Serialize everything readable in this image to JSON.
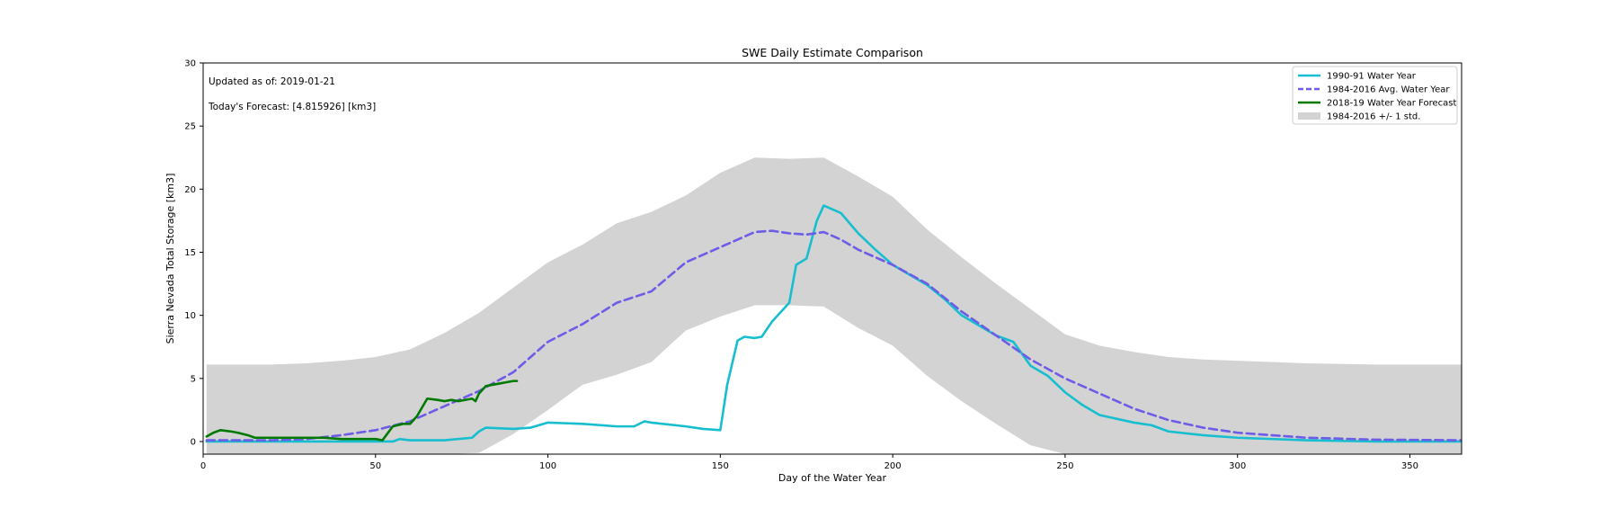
{
  "chart_data": {
    "type": "line",
    "title": "SWE Daily Estimate Comparison",
    "xlabel": "Day of the Water Year",
    "ylabel": "Sierra Nevada Total Storage [km3]",
    "xlim": [
      0,
      365
    ],
    "ylim": [
      -1,
      30
    ],
    "xticks": [
      0,
      50,
      100,
      150,
      200,
      250,
      300,
      350
    ],
    "yticks": [
      0,
      5,
      10,
      15,
      20,
      25,
      30
    ],
    "grid": false,
    "legend_position": "top-right",
    "annotations": [
      "Updated as of: 2019-01-21",
      "Today's Forecast: [4.815926] [km3]"
    ],
    "band": {
      "name": "1984-2016 +/- 1 std.",
      "color": "#d3d3d3",
      "x": [
        1,
        10,
        20,
        30,
        40,
        50,
        60,
        70,
        80,
        90,
        100,
        110,
        120,
        130,
        140,
        150,
        160,
        170,
        180,
        190,
        200,
        210,
        220,
        230,
        240,
        250,
        260,
        270,
        280,
        290,
        300,
        320,
        340,
        365
      ],
      "upper": [
        6.1,
        6.1,
        6.1,
        6.2,
        6.4,
        6.7,
        7.3,
        8.6,
        10.2,
        12.2,
        14.2,
        15.6,
        17.3,
        18.2,
        19.5,
        21.3,
        22.5,
        22.4,
        22.5,
        21.0,
        19.4,
        16.8,
        14.6,
        12.5,
        10.5,
        8.5,
        7.6,
        7.1,
        6.7,
        6.5,
        6.4,
        6.2,
        6.1,
        6.1
      ],
      "lower": [
        -1,
        -1,
        -1,
        -1,
        -1,
        -1,
        -1,
        -1,
        -0.9,
        0.6,
        2.5,
        4.5,
        5.3,
        6.3,
        8.8,
        9.9,
        10.8,
        10.8,
        10.7,
        9.0,
        7.6,
        5.2,
        3.2,
        1.4,
        -0.3,
        -1,
        -1,
        -1,
        -1,
        -1,
        -1,
        -1,
        -1,
        -1
      ]
    },
    "series": [
      {
        "name": "1990-91 Water Year",
        "color": "#17becf",
        "style": "solid",
        "x": [
          1,
          10,
          20,
          30,
          40,
          50,
          55,
          57,
          60,
          70,
          78,
          80,
          82,
          90,
          95,
          100,
          110,
          120,
          125,
          128,
          130,
          140,
          145,
          150,
          152,
          155,
          157,
          160,
          162,
          165,
          170,
          172,
          175,
          178,
          180,
          185,
          190,
          195,
          200,
          205,
          210,
          215,
          220,
          225,
          230,
          235,
          240,
          245,
          250,
          255,
          260,
          270,
          275,
          280,
          290,
          300,
          320,
          340,
          365
        ],
        "y": [
          0,
          0,
          0,
          0,
          0,
          0,
          0,
          0.2,
          0.1,
          0.1,
          0.3,
          0.8,
          1.1,
          1.0,
          1.1,
          1.5,
          1.4,
          1.2,
          1.2,
          1.6,
          1.5,
          1.2,
          1.0,
          0.9,
          4.5,
          8.0,
          8.3,
          8.2,
          8.3,
          9.5,
          11.0,
          14.0,
          14.5,
          17.5,
          18.7,
          18.1,
          16.5,
          15.2,
          14.0,
          13.2,
          12.4,
          11.3,
          10.0,
          9.2,
          8.4,
          7.9,
          6.0,
          5.2,
          3.9,
          2.9,
          2.1,
          1.5,
          1.3,
          0.8,
          0.5,
          0.3,
          0.1,
          0.0,
          0.0
        ]
      },
      {
        "name": "1984-2016 Avg. Water Year",
        "color": "#6c5ce7",
        "style": "dashed",
        "x": [
          1,
          10,
          20,
          30,
          40,
          50,
          60,
          70,
          80,
          90,
          100,
          110,
          120,
          130,
          140,
          150,
          155,
          160,
          165,
          170,
          175,
          180,
          185,
          190,
          200,
          210,
          220,
          230,
          240,
          250,
          260,
          270,
          280,
          290,
          300,
          320,
          340,
          365
        ],
        "y": [
          0.1,
          0.1,
          0.1,
          0.2,
          0.5,
          0.9,
          1.6,
          2.8,
          4.0,
          5.5,
          7.9,
          9.3,
          11.0,
          11.9,
          14.2,
          15.4,
          16.0,
          16.6,
          16.7,
          16.5,
          16.4,
          16.6,
          16.0,
          15.2,
          14.0,
          12.5,
          10.3,
          8.4,
          6.5,
          5.0,
          3.8,
          2.6,
          1.7,
          1.1,
          0.7,
          0.3,
          0.15,
          0.1
        ]
      },
      {
        "name": "2018-19 Water Year Forecast",
        "color": "#007a00",
        "style": "solid",
        "x": [
          1,
          3,
          5,
          8,
          10,
          13,
          15,
          20,
          25,
          30,
          35,
          40,
          45,
          50,
          52,
          55,
          58,
          60,
          62,
          65,
          68,
          70,
          72,
          74,
          76,
          78,
          79,
          80,
          82,
          84,
          86,
          88,
          90,
          91
        ],
        "y": [
          0.4,
          0.7,
          0.9,
          0.8,
          0.7,
          0.5,
          0.3,
          0.3,
          0.3,
          0.3,
          0.3,
          0.2,
          0.2,
          0.2,
          0.1,
          1.2,
          1.4,
          1.4,
          2.0,
          3.4,
          3.3,
          3.2,
          3.3,
          3.2,
          3.3,
          3.4,
          3.2,
          3.8,
          4.4,
          4.5,
          4.6,
          4.7,
          4.8,
          4.8
        ]
      }
    ]
  }
}
